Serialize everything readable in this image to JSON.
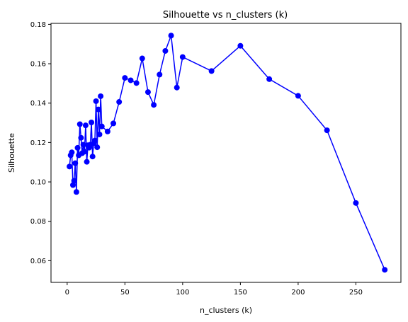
{
  "chart_data": {
    "type": "line",
    "title": "Silhouette vs n_clusters (k)",
    "xlabel": "n_clusters (k)",
    "ylabel": "Silhouette",
    "xlim": [
      -14,
      289
    ],
    "ylim": [
      0.049,
      0.1805
    ],
    "xticks": [
      0,
      50,
      100,
      150,
      200,
      250
    ],
    "yticks": [
      0.06,
      0.08,
      0.1,
      0.12,
      0.14,
      0.16,
      0.18
    ],
    "ytick_labels": [
      "0.06",
      "0.08",
      "0.10",
      "0.12",
      "0.14",
      "0.16",
      "0.18"
    ],
    "grid": false,
    "color": "#0000ff",
    "series": [
      {
        "x": [
          2,
          3,
          4,
          5,
          6,
          7,
          8,
          9,
          10,
          11,
          12,
          13,
          14,
          15,
          16,
          17,
          18,
          19,
          20,
          21,
          22,
          23,
          24,
          25,
          26,
          27,
          28,
          29,
          30,
          35,
          40,
          45,
          50,
          55,
          60,
          65,
          70,
          75,
          80,
          85,
          90,
          95,
          100,
          125,
          150,
          175,
          200,
          225,
          250,
          275
        ],
        "y": [
          0.1078,
          0.1135,
          0.115,
          0.0984,
          0.1006,
          0.1095,
          0.0949,
          0.1173,
          0.1135,
          0.1293,
          0.1224,
          0.1146,
          0.1189,
          0.1154,
          0.1287,
          0.1102,
          0.1186,
          0.1174,
          0.1189,
          0.1302,
          0.1129,
          0.1196,
          0.121,
          0.141,
          0.1176,
          0.1368,
          0.1241,
          0.1435,
          0.1282,
          0.1256,
          0.1297,
          0.1406,
          0.1528,
          0.1516,
          0.1502,
          0.1627,
          0.1456,
          0.1391,
          0.1545,
          0.1665,
          0.1743,
          0.1479,
          0.1634,
          0.1563,
          0.1691,
          0.1522,
          0.1437,
          0.1262,
          0.0893,
          0.0554
        ]
      }
    ]
  }
}
